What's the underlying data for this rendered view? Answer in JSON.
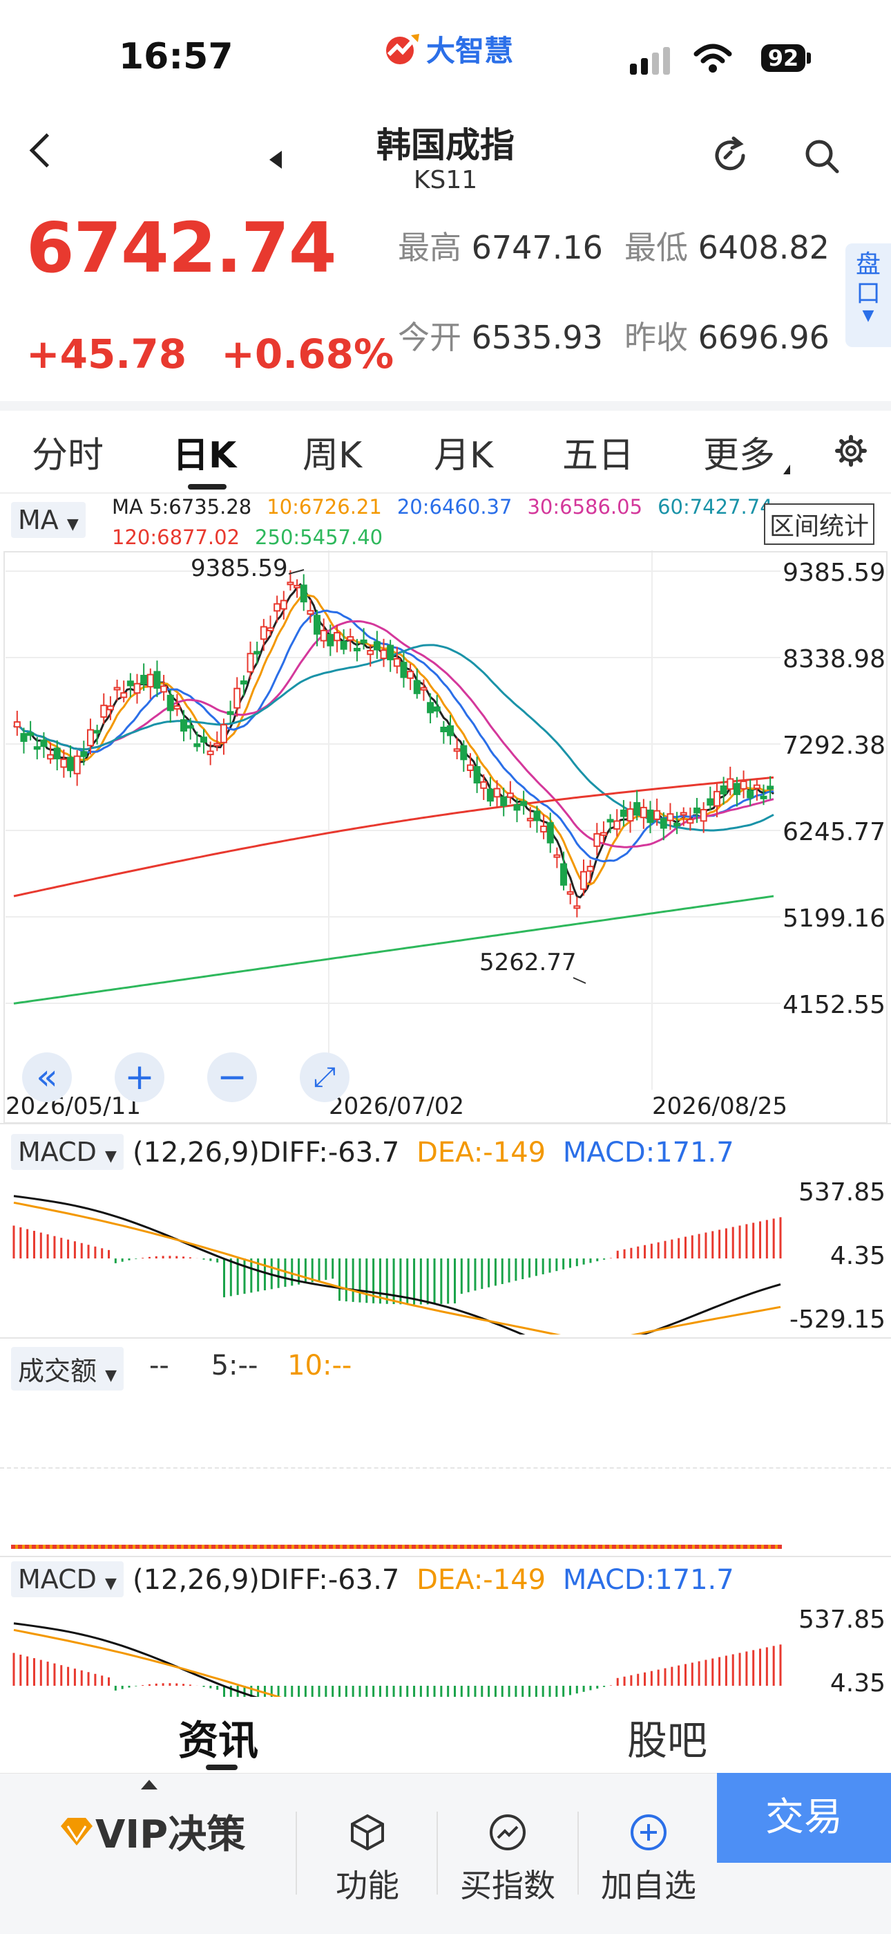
{
  "status": {
    "time": "16:57",
    "battery": "92",
    "logo_text": "大智慧"
  },
  "header": {
    "title": "韩国成指",
    "code": "KS11"
  },
  "quote": {
    "price": "6742.74",
    "change": "+45.78",
    "change_pct": "+0.68%",
    "high_label": "最高",
    "high": "6747.16",
    "low_label": "最低",
    "low": "6408.82",
    "open_label": "今开",
    "open": "6535.93",
    "prev_label": "昨收",
    "prev": "6696.96",
    "pankou": "盘口"
  },
  "tabs": [
    "分时",
    "日K",
    "周K",
    "月K",
    "五日",
    "更多"
  ],
  "ma_legend": {
    "selector": "MA",
    "items": [
      {
        "label": "MA 5:6735.28",
        "color": "#222222"
      },
      {
        "label": "10:6726.21",
        "color": "#f39800"
      },
      {
        "label": "20:6460.37",
        "color": "#2b6fe8"
      },
      {
        "label": "30:6586.05",
        "color": "#d4389b"
      },
      {
        "label": "60:7427.74",
        "color": "#1a93a8"
      },
      {
        "label": "120:6877.02",
        "color": "#e8392f"
      },
      {
        "label": "250:5457.40",
        "color": "#2eb85c"
      }
    ],
    "range_button": "区间统计"
  },
  "chart_data": {
    "type": "candlestick",
    "yticks": [
      "9385.59",
      "8338.98",
      "7292.38",
      "6245.77",
      "5199.16",
      "4152.55"
    ],
    "x_dates": [
      "2026/05/11",
      "2026/07/02",
      "2026/08/25"
    ],
    "max_annotation": "9385.59",
    "min_annotation": "5262.77"
  },
  "macd": {
    "selector": "MACD",
    "params": "(12,26,9)",
    "diff": "DIFF:-63.7",
    "dea": "DEA:-149",
    "macd": "MACD:171.7",
    "yticks": [
      "537.85",
      "4.35",
      "-529.15"
    ]
  },
  "volume": {
    "selector": "成交额",
    "v1": "--",
    "v5": "5:--",
    "v10": "10:--"
  },
  "bottom_tabs": [
    "资讯",
    "股吧"
  ],
  "nav": {
    "vip": "VIP决策",
    "func": "功能",
    "buy": "买指数",
    "add": "加自选",
    "trade": "交易"
  }
}
